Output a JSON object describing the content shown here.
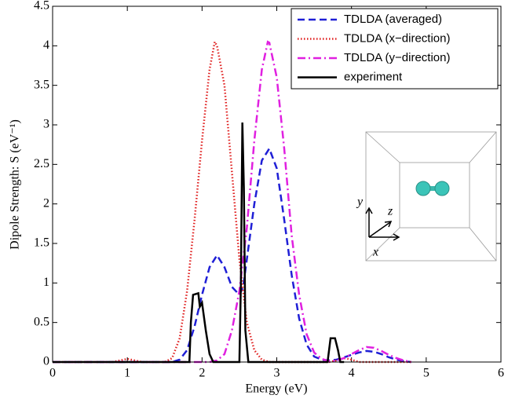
{
  "chart_data": {
    "type": "line",
    "x_label": "Energy (eV)",
    "y_label": "Dipole Strength: S (eV⁻¹)",
    "xlim": [
      0,
      6
    ],
    "ylim": [
      0,
      4.5
    ],
    "xticks": [
      0,
      1,
      2,
      3,
      4,
      5,
      6
    ],
    "yticks": [
      0,
      0.5,
      1,
      1.5,
      2,
      2.5,
      3,
      3.5,
      4,
      4.5
    ],
    "legend": "upper right",
    "inset_labels": [
      "y",
      "z",
      "x"
    ],
    "series": [
      {
        "name": "TDLDA (averaged)",
        "color": "#1f1fd6",
        "style": "dashed",
        "x": [
          0,
          1.6,
          1.7,
          1.8,
          1.9,
          2.0,
          2.1,
          2.2,
          2.3,
          2.4,
          2.5,
          2.55,
          2.6,
          2.7,
          2.8,
          2.9,
          3.0,
          3.1,
          3.2,
          3.3,
          3.4,
          3.5,
          3.6,
          3.7,
          3.8,
          3.9,
          4.0,
          4.1,
          4.2,
          4.3,
          4.4,
          4.5,
          4.6,
          4.7,
          4.8
        ],
        "values": [
          0,
          0,
          0.03,
          0.15,
          0.45,
          0.85,
          1.2,
          1.35,
          1.2,
          0.95,
          0.85,
          0.95,
          1.3,
          2.0,
          2.55,
          2.7,
          2.45,
          1.8,
          1.1,
          0.55,
          0.22,
          0.07,
          0.03,
          0.02,
          0.03,
          0.06,
          0.09,
          0.12,
          0.14,
          0.13,
          0.1,
          0.06,
          0.03,
          0.01,
          0
        ]
      },
      {
        "name": "TDLDA (x−direction)",
        "color": "#e02020",
        "style": "dotted",
        "x": [
          0,
          0.8,
          0.9,
          1.0,
          1.1,
          1.2,
          1.5,
          1.6,
          1.7,
          1.8,
          1.9,
          2.0,
          2.1,
          2.17,
          2.2,
          2.3,
          2.4,
          2.5,
          2.6,
          2.7,
          2.8,
          2.9,
          3.7,
          3.8,
          3.9,
          4.0,
          4.1,
          4.8
        ],
        "values": [
          0,
          0,
          0.02,
          0.04,
          0.02,
          0,
          0,
          0.05,
          0.3,
          0.9,
          1.8,
          2.8,
          3.7,
          4.05,
          4.0,
          3.5,
          2.4,
          1.3,
          0.5,
          0.15,
          0.03,
          0,
          0,
          0.02,
          0.05,
          0.03,
          0,
          0
        ]
      },
      {
        "name": "TDLDA (y−direction)",
        "color": "#e020e0",
        "style": "dashdot",
        "x": [
          0,
          2.1,
          2.2,
          2.3,
          2.4,
          2.5,
          2.6,
          2.7,
          2.8,
          2.88,
          2.9,
          3.0,
          3.1,
          3.2,
          3.3,
          3.4,
          3.5,
          3.6,
          3.7,
          3.8,
          3.9,
          4.0,
          4.1,
          4.2,
          4.3,
          4.4,
          4.5,
          4.6,
          4.7,
          4.8
        ],
        "values": [
          0,
          0,
          0.02,
          0.1,
          0.4,
          0.9,
          1.7,
          2.8,
          3.7,
          4.05,
          4.04,
          3.6,
          2.7,
          1.6,
          0.85,
          0.35,
          0.12,
          0.04,
          0.01,
          0.02,
          0.05,
          0.1,
          0.15,
          0.19,
          0.18,
          0.14,
          0.09,
          0.05,
          0.02,
          0
        ]
      },
      {
        "name": "experiment",
        "color": "#000000",
        "style": "solid",
        "x": [
          0,
          1.83,
          1.85,
          1.88,
          1.95,
          1.97,
          2.0,
          2.05,
          2.1,
          2.15,
          2.5,
          2.52,
          2.54,
          2.56,
          2.58,
          2.62,
          3.68,
          3.72,
          3.78,
          3.82,
          3.85,
          3.9
        ],
        "values": [
          0,
          0,
          0.5,
          0.85,
          0.87,
          0.7,
          0.75,
          0.4,
          0.1,
          0,
          0,
          1.0,
          3.03,
          2.2,
          0.4,
          0,
          0,
          0.3,
          0.3,
          0.15,
          0,
          0
        ]
      }
    ]
  }
}
